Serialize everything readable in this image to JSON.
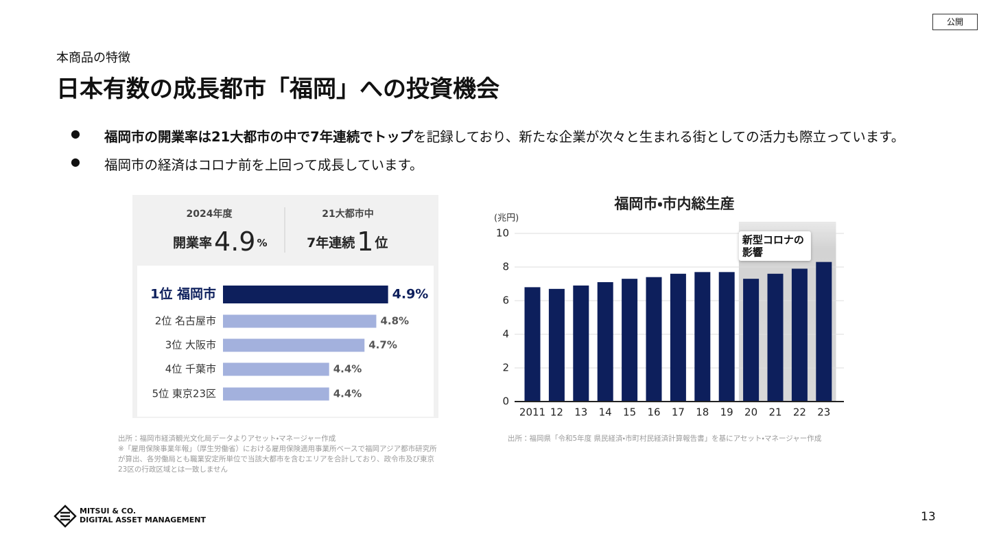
{
  "tag": "公開",
  "header": {
    "subtitle": "本商品の特徴",
    "title": "日本有数の成長都市「福岡」への投資機会"
  },
  "bullets": [
    {
      "bold": "福岡市の開業率は21大都市の中で7年連続でトップ",
      "text": "を記録しており、新たな企業が次々と生まれる街としての活力も際立っています。"
    },
    {
      "bold": "",
      "text": "福岡市の経済はコロナ前を上回って成長しています。"
    }
  ],
  "chart_data": [
    {
      "type": "hbar",
      "highlights": [
        {
          "caption": "2024年度",
          "label": "開業率",
          "figure": "4.9",
          "unit": "%"
        },
        {
          "caption": "21大都市中",
          "label": "7年連続",
          "figure": "1",
          "unit": "位"
        }
      ],
      "categories": [
        "1位 福岡市",
        "2位 名古屋市",
        "3位 大阪市",
        "4位 千葉市",
        "5位 東京23区"
      ],
      "values": [
        4.9,
        4.8,
        4.7,
        4.4,
        4.4
      ],
      "value_labels": [
        "4.9%",
        "4.8%",
        "4.7%",
        "4.4%",
        "4.4%"
      ],
      "colors": [
        "#0d1f5c",
        "#a3b1dd",
        "#a3b1dd",
        "#a3b1dd",
        "#a3b1dd"
      ],
      "xlim": [
        3.5,
        5.1
      ],
      "notes": [
        "出所：福岡市経済観光文化局データよりアセット・マネージャー作成",
        "※「雇用保険事業年報」（厚生労働省）における雇用保険適用事業所ベースで福岡アジア都市研究所",
        "が算出、各労働局とも職業安定所単位で当該大都市を含むエリアを合計しており、政令市及び東京",
        "23区の行政区域とは一致しません"
      ]
    },
    {
      "type": "bar",
      "title": "福岡市・市内総生産",
      "y_label": "(兆円)",
      "categories": [
        "2011",
        "12",
        "13",
        "14",
        "15",
        "16",
        "17",
        "18",
        "19",
        "20",
        "21",
        "22",
        "23"
      ],
      "values": [
        6.8,
        6.7,
        6.9,
        7.1,
        7.3,
        7.4,
        7.6,
        7.7,
        7.7,
        7.3,
        7.6,
        7.9,
        8.3
      ],
      "color": "#0d1f5c",
      "ylim": [
        0,
        10
      ],
      "yticks": [
        0,
        2,
        4,
        6,
        8,
        10
      ],
      "grid": true,
      "highlight": {
        "start": 9,
        "label": [
          "新型コロナの",
          "影響"
        ]
      },
      "notes": [
        "出所：福岡県「令和5年度 県民経済・市町村民経済計算報告書」を基にアセット・マネージャー作成"
      ]
    }
  ],
  "footer": {
    "logo": [
      "MITSUI & CO.",
      "DIGITAL ASSET MANAGEMENT"
    ],
    "page": 13
  }
}
